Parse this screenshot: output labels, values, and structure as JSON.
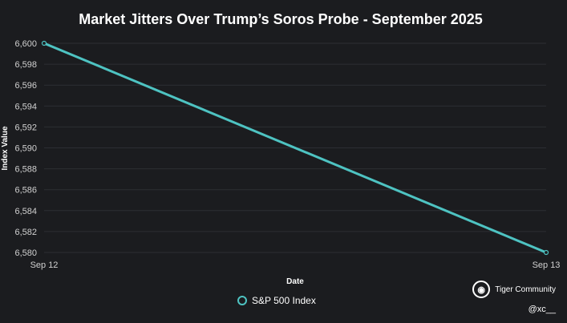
{
  "chart_data": {
    "type": "line",
    "title": "Market Jitters Over Trump’s Soros Probe - September 2025",
    "xlabel": "Date",
    "ylabel": "Index Value",
    "categories": [
      "Sep 12",
      "Sep 13"
    ],
    "series": [
      {
        "name": "S&P 500 Index",
        "values": [
          6600,
          6580
        ],
        "color": "#4ec3c2"
      }
    ],
    "ylim": [
      6580,
      6600
    ],
    "yticks": [
      6580,
      6582,
      6584,
      6586,
      6588,
      6590,
      6592,
      6594,
      6596,
      6598,
      6600
    ],
    "grid": true,
    "legend_position": "bottom-center"
  },
  "watermark": {
    "brand": "Tiger Community",
    "handle": "@xc__",
    "icon": "tiger-icon"
  }
}
